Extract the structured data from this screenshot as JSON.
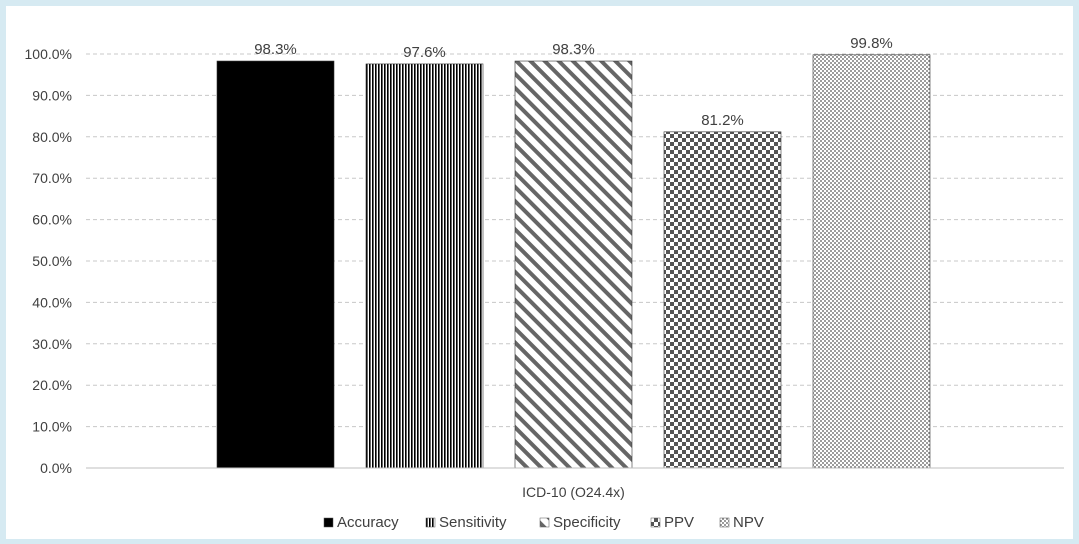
{
  "chart_data": {
    "type": "bar",
    "categories": [
      "ICD-10 (O24.4x)"
    ],
    "series": [
      {
        "name": "Accuracy",
        "values": [
          98.3
        ],
        "label": "98.3%",
        "pattern": "solid"
      },
      {
        "name": "Sensitivity",
        "values": [
          97.6
        ],
        "label": "97.6%",
        "pattern": "vertical-lines"
      },
      {
        "name": "Specificity",
        "values": [
          98.3
        ],
        "label": "98.3%",
        "pattern": "diagonal-lines"
      },
      {
        "name": "PPV",
        "values": [
          81.2
        ],
        "label": "81.2%",
        "pattern": "checker"
      },
      {
        "name": "NPV",
        "values": [
          99.8
        ],
        "label": "99.8%",
        "pattern": "dots"
      }
    ],
    "y_ticks": [
      "0.0%",
      "10.0%",
      "20.0%",
      "30.0%",
      "40.0%",
      "50.0%",
      "60.0%",
      "70.0%",
      "80.0%",
      "90.0%",
      "100.0%"
    ],
    "ylim": [
      0,
      100
    ],
    "grid": true,
    "legend": "bottom",
    "title": "",
    "xlabel": "",
    "ylabel": ""
  },
  "colors": {
    "frame_background": "#d6eaf2",
    "bar_dark": "#000000",
    "bar_gray": "#555555",
    "grid": "#c8c8c8",
    "text": "#404040"
  }
}
